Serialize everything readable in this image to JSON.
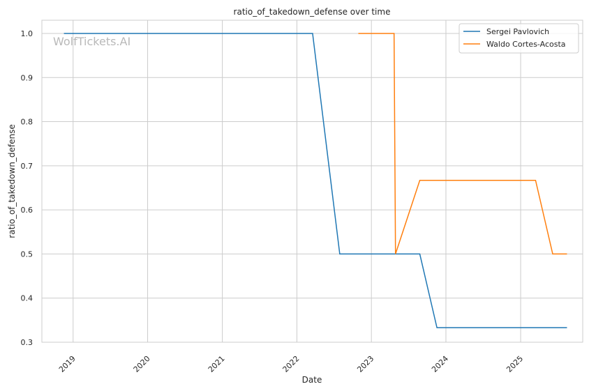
{
  "chart_data": {
    "type": "line",
    "title": "ratio_of_takedown_defense over time",
    "xlabel": "Date",
    "ylabel": "ratio_of_takedown_defense",
    "watermark": "WolfTickets.AI",
    "grid": true,
    "legend_position": "top-right",
    "xlim": [
      "2018-08-01",
      "2025-11-01"
    ],
    "ylim": [
      0.3,
      1.03
    ],
    "x_ticks": [
      {
        "date": "2019-01-01",
        "label": "2019"
      },
      {
        "date": "2020-01-01",
        "label": "2020"
      },
      {
        "date": "2021-01-01",
        "label": "2021"
      },
      {
        "date": "2022-01-01",
        "label": "2022"
      },
      {
        "date": "2023-01-01",
        "label": "2023"
      },
      {
        "date": "2024-01-01",
        "label": "2024"
      },
      {
        "date": "2025-01-01",
        "label": "2025"
      }
    ],
    "y_ticks": [
      {
        "value": 0.3,
        "label": "0.3"
      },
      {
        "value": 0.4,
        "label": "0.4"
      },
      {
        "value": 0.5,
        "label": "0.5"
      },
      {
        "value": 0.6,
        "label": "0.6"
      },
      {
        "value": 0.7,
        "label": "0.7"
      },
      {
        "value": 0.8,
        "label": "0.8"
      },
      {
        "value": 0.9,
        "label": "0.9"
      },
      {
        "value": 1.0,
        "label": "1.0"
      }
    ],
    "series": [
      {
        "name": "Sergei Pavlovich",
        "color": "#1f77b4",
        "points": [
          {
            "x": "2018-11-17",
            "y": 1.0
          },
          {
            "x": "2022-03-19",
            "y": 1.0
          },
          {
            "x": "2022-07-30",
            "y": 0.5
          },
          {
            "x": "2023-08-26",
            "y": 0.5
          },
          {
            "x": "2023-11-18",
            "y": 0.333
          },
          {
            "x": "2025-08-16",
            "y": 0.333
          }
        ]
      },
      {
        "name": "Waldo Cortes-Acosta",
        "color": "#ff7f0e",
        "points": [
          {
            "x": "2022-10-29",
            "y": 1.0
          },
          {
            "x": "2023-04-22",
            "y": 1.0
          },
          {
            "x": "2023-04-29",
            "y": 0.5
          },
          {
            "x": "2023-08-26",
            "y": 0.667
          },
          {
            "x": "2025-03-15",
            "y": 0.667
          },
          {
            "x": "2025-06-07",
            "y": 0.5
          },
          {
            "x": "2025-08-16",
            "y": 0.5
          }
        ]
      }
    ]
  }
}
